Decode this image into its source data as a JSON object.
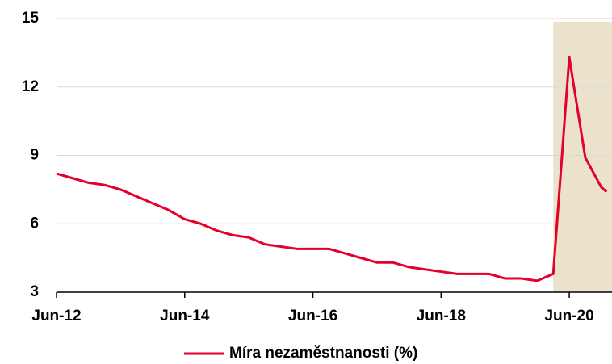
{
  "chart_data": {
    "type": "line",
    "x": [
      "2012-06",
      "2012-09",
      "2012-12",
      "2013-03",
      "2013-06",
      "2013-09",
      "2013-12",
      "2014-03",
      "2014-06",
      "2014-09",
      "2014-12",
      "2015-03",
      "2015-06",
      "2015-09",
      "2015-12",
      "2016-03",
      "2016-06",
      "2016-09",
      "2016-12",
      "2017-03",
      "2017-06",
      "2017-09",
      "2017-12",
      "2018-03",
      "2018-06",
      "2018-09",
      "2018-12",
      "2019-03",
      "2019-06",
      "2019-09",
      "2019-12",
      "2020-03",
      "2020-06",
      "2020-09",
      "2020-12",
      "2021-01"
    ],
    "series": [
      {
        "name": "Míra nezaměstnanosti (%)",
        "color": "#e4002b",
        "values": [
          8.2,
          8.0,
          7.8,
          7.7,
          7.5,
          7.2,
          6.9,
          6.6,
          6.2,
          6.0,
          5.7,
          5.5,
          5.4,
          5.1,
          5.0,
          4.9,
          4.9,
          4.9,
          4.7,
          4.5,
          4.3,
          4.3,
          4.1,
          4.0,
          3.9,
          3.8,
          3.8,
          3.8,
          3.6,
          3.6,
          3.5,
          3.8,
          13.3,
          8.9,
          7.6,
          7.4
        ]
      }
    ],
    "xlim": [
      "2012-06",
      "2021-02"
    ],
    "ylim": [
      3,
      15
    ],
    "yticks": [
      3,
      6,
      9,
      12,
      15
    ],
    "xticks": [
      {
        "value": "2012-06",
        "label": "Jun-12"
      },
      {
        "value": "2014-06",
        "label": "Jun-14"
      },
      {
        "value": "2016-06",
        "label": "Jun-16"
      },
      {
        "value": "2018-06",
        "label": "Jun-18"
      },
      {
        "value": "2020-06",
        "label": "Jun-20"
      }
    ],
    "shaded": {
      "range": [
        "2020-03",
        "2021-02"
      ],
      "color": "#ebe2cc"
    },
    "grid": true,
    "legend": "bottom"
  }
}
